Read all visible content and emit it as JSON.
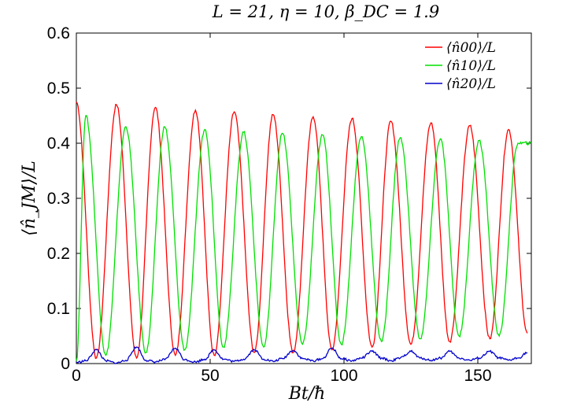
{
  "chart_data": {
    "type": "line",
    "title": "L = 21, η = 10, β_DC = 1.9",
    "xlabel": "Bt/ħ",
    "ylabel": "⟨n̂_JM⟩/L",
    "xlim": [
      0,
      170
    ],
    "ylim": [
      0,
      0.6
    ],
    "xticks": [
      0,
      50,
      100,
      150
    ],
    "yticks": [
      0,
      0.1,
      0.2,
      0.3,
      0.4,
      0.5,
      0.6
    ],
    "xtick_labels": [
      "0",
      "50",
      "100",
      "150"
    ],
    "ytick_labels": [
      "0",
      "0.1",
      "0.2",
      "0.3",
      "0.4",
      "0.5",
      "0.6"
    ],
    "grid": false,
    "legend_position": "top-right",
    "series": [
      {
        "name": "⟨n̂00⟩/L",
        "color": "#ff0000",
        "x": [
          0,
          7.5,
          15,
          22.5,
          29.5,
          37,
          44.5,
          51.5,
          59,
          66.5,
          73.5,
          81,
          88.5,
          95.5,
          103,
          110.5,
          117.5,
          125,
          132.5,
          139.5,
          147,
          154.5,
          161.5,
          168.5
        ],
        "y": [
          0.475,
          0.01,
          0.47,
          0.01,
          0.465,
          0.015,
          0.46,
          0.015,
          0.457,
          0.02,
          0.452,
          0.02,
          0.448,
          0.025,
          0.445,
          0.03,
          0.44,
          0.035,
          0.437,
          0.04,
          0.432,
          0.045,
          0.425,
          0.055
        ]
      },
      {
        "name": "⟨n̂10⟩/L",
        "color": "#00e000",
        "x": [
          0,
          3.5,
          11,
          18.5,
          26,
          33,
          40.5,
          48,
          55,
          62.5,
          70,
          77,
          84.5,
          92,
          99,
          106.5,
          114,
          121,
          128.5,
          136,
          143,
          150.5,
          158,
          165,
          170
        ],
        "y": [
          0.005,
          0.45,
          0.015,
          0.43,
          0.02,
          0.43,
          0.025,
          0.425,
          0.03,
          0.42,
          0.03,
          0.418,
          0.035,
          0.415,
          0.035,
          0.412,
          0.04,
          0.41,
          0.045,
          0.408,
          0.05,
          0.405,
          0.05,
          0.4,
          0.4
        ]
      },
      {
        "name": "⟨n̂20⟩/L",
        "color": "#0000cc",
        "x": [
          0,
          3.5,
          7.5,
          11,
          15,
          18.5,
          22.5,
          26,
          29.5,
          33,
          37,
          40.5,
          44.5,
          48,
          51.5,
          55,
          59,
          62.5,
          66.5,
          70,
          73.5,
          77,
          81,
          84.5,
          88.5,
          92,
          95.5,
          99,
          103,
          106.5,
          110.5,
          114,
          117.5,
          121,
          125,
          128.5,
          132.5,
          136,
          139.5,
          143,
          147,
          150.5,
          154.5,
          158,
          161.5,
          165,
          168.5
        ],
        "y": [
          0.002,
          0.005,
          0.025,
          0.005,
          0.001,
          0.006,
          0.03,
          0.006,
          0.003,
          0.007,
          0.028,
          0.007,
          0.003,
          0.008,
          0.025,
          0.008,
          0.004,
          0.008,
          0.025,
          0.008,
          0.004,
          0.009,
          0.024,
          0.009,
          0.005,
          0.009,
          0.028,
          0.009,
          0.005,
          0.01,
          0.022,
          0.01,
          0.005,
          0.01,
          0.022,
          0.01,
          0.006,
          0.01,
          0.022,
          0.01,
          0.006,
          0.01,
          0.022,
          0.01,
          0.006,
          0.01,
          0.02
        ]
      }
    ]
  }
}
